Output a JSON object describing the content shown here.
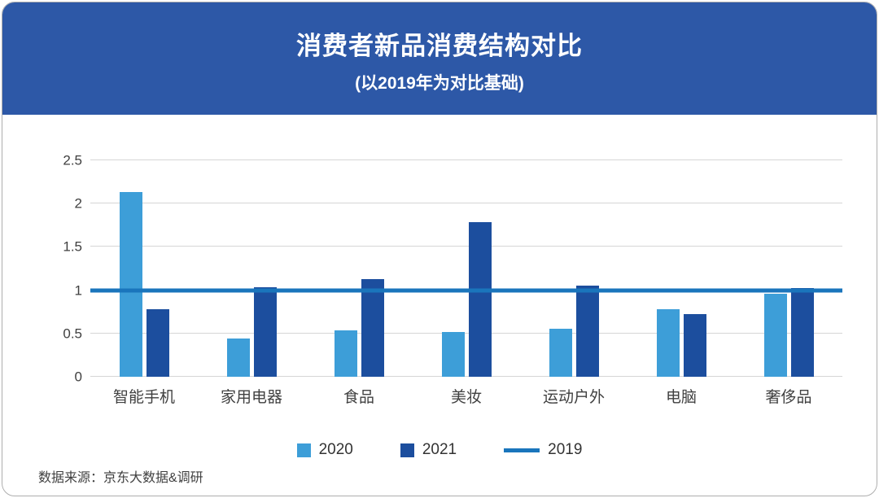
{
  "header": {
    "title": "消费者新品消费结构对比",
    "subtitle": "(以2019年为对比基础)"
  },
  "chart_data": {
    "type": "bar",
    "title": "消费者新品消费结构对比",
    "subtitle": "(以2019年为对比基础)",
    "categories": [
      "智能手机",
      "家用电器",
      "食品",
      "美妆",
      "运动户外",
      "电脑",
      "奢侈品"
    ],
    "series": [
      {
        "name": "2020",
        "color": "#3d9ed8",
        "values": [
          2.13,
          0.44,
          0.54,
          0.52,
          0.55,
          0.78,
          0.96
        ]
      },
      {
        "name": "2021",
        "color": "#1c4e9e",
        "values": [
          0.78,
          1.03,
          1.13,
          1.79,
          1.05,
          0.72,
          1.02
        ]
      }
    ],
    "reference_line": {
      "name": "2019",
      "value": 1,
      "color": "#1a75bc"
    },
    "ylim": [
      0,
      2.5
    ],
    "yticks": [
      0,
      0.5,
      1,
      1.5,
      2,
      2.5
    ],
    "grid": true,
    "legend_position": "bottom"
  },
  "footer": {
    "source": "数据来源：京东大数据&调研"
  },
  "colors": {
    "header_bg": "#2d58a7",
    "series_2020": "#3d9ed8",
    "series_2021": "#1c4e9e",
    "line_2019": "#1a75bc",
    "gridline": "#d6d6d6"
  }
}
